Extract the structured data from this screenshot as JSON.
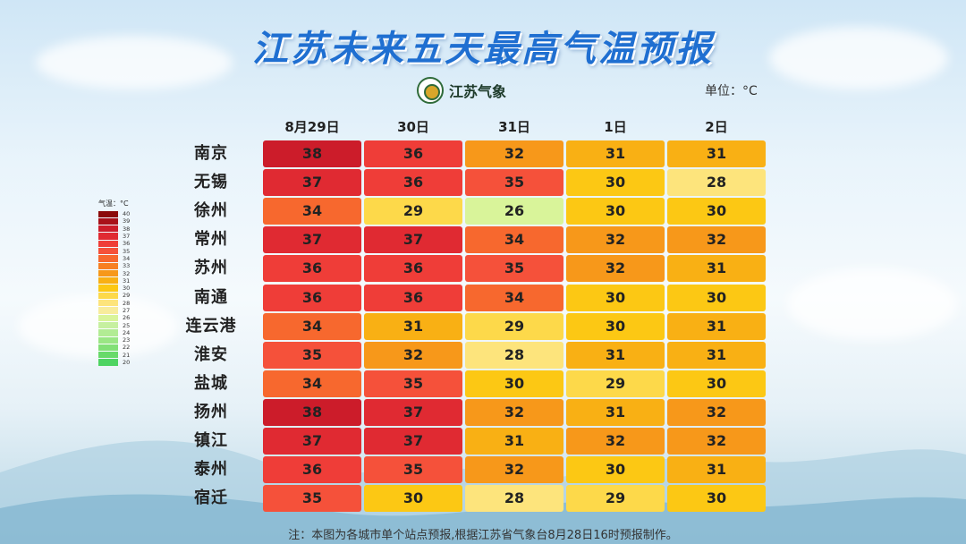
{
  "title": "江苏未来五天最高气温预报",
  "logo_text": "江苏气象",
  "unit_label": "单位：°C",
  "note": "注：本图为各城市单个站点预报,根据江苏省气象台8月28日16时预报制作。",
  "legend": {
    "title": "气温：°C",
    "items": [
      {
        "label": "40",
        "color": "#8b0a0a"
      },
      {
        "label": "39",
        "color": "#a8111a"
      },
      {
        "label": "38",
        "color": "#cc1c2a"
      },
      {
        "label": "37",
        "color": "#e02a32"
      },
      {
        "label": "36",
        "color": "#ef3d38"
      },
      {
        "label": "35",
        "color": "#f5513a"
      },
      {
        "label": "34",
        "color": "#f7682e"
      },
      {
        "label": "33",
        "color": "#f77f22"
      },
      {
        "label": "32",
        "color": "#f7981a"
      },
      {
        "label": "31",
        "color": "#f9b014"
      },
      {
        "label": "30",
        "color": "#fcc814"
      },
      {
        "label": "29",
        "color": "#fdd94a"
      },
      {
        "label": "28",
        "color": "#fde47c"
      },
      {
        "label": "27",
        "color": "#f8ec9c"
      },
      {
        "label": "26",
        "color": "#d9f49a"
      },
      {
        "label": "25",
        "color": "#c6f0a0"
      },
      {
        "label": "24",
        "color": "#b2ec94"
      },
      {
        "label": "23",
        "color": "#9ae684"
      },
      {
        "label": "22",
        "color": "#82e076"
      },
      {
        "label": "21",
        "color": "#68da6a"
      },
      {
        "label": "20",
        "color": "#4ed462"
      }
    ]
  },
  "chart_data": {
    "type": "heatmap",
    "title": "江苏未来五天最高气温预报",
    "unit": "°C",
    "columns": [
      "8月29日",
      "30日",
      "31日",
      "1日",
      "2日"
    ],
    "rows": [
      {
        "city": "南京",
        "values": [
          38,
          36,
          32,
          31,
          31
        ]
      },
      {
        "city": "无锡",
        "values": [
          37,
          36,
          35,
          30,
          28
        ]
      },
      {
        "city": "徐州",
        "values": [
          34,
          29,
          26,
          30,
          30
        ]
      },
      {
        "city": "常州",
        "values": [
          37,
          37,
          34,
          32,
          32
        ]
      },
      {
        "city": "苏州",
        "values": [
          36,
          36,
          35,
          32,
          31
        ]
      },
      {
        "city": "南通",
        "values": [
          36,
          36,
          34,
          30,
          30
        ]
      },
      {
        "city": "连云港",
        "values": [
          34,
          31,
          29,
          30,
          31
        ]
      },
      {
        "city": "淮安",
        "values": [
          35,
          32,
          28,
          31,
          31
        ]
      },
      {
        "city": "盐城",
        "values": [
          34,
          35,
          30,
          29,
          30
        ]
      },
      {
        "city": "扬州",
        "values": [
          38,
          37,
          32,
          31,
          32
        ]
      },
      {
        "city": "镇江",
        "values": [
          37,
          37,
          31,
          32,
          32
        ]
      },
      {
        "city": "泰州",
        "values": [
          36,
          35,
          32,
          30,
          31
        ]
      },
      {
        "city": "宿迁",
        "values": [
          35,
          30,
          28,
          29,
          30
        ]
      }
    ]
  }
}
